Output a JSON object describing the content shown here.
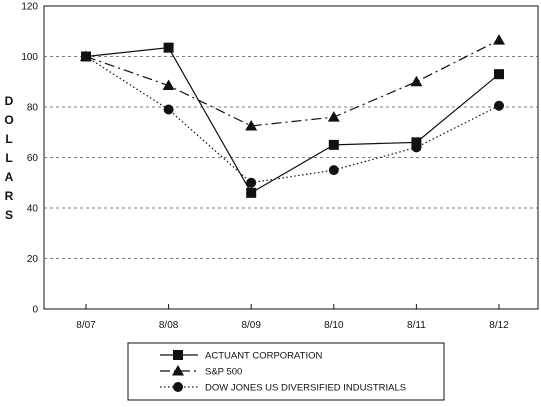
{
  "chart_data": {
    "type": "line",
    "categories": [
      "8/07",
      "8/08",
      "8/09",
      "8/10",
      "8/11",
      "8/12"
    ],
    "ylabel": "DOLLARS",
    "ylim": [
      0,
      120
    ],
    "yticks": [
      0,
      20,
      40,
      60,
      80,
      100,
      120
    ],
    "grid": "horizontal dashed",
    "legend_position": "bottom",
    "series": [
      {
        "name": "ACTUANT CORPORATION",
        "marker": "square",
        "line_style": "solid",
        "values": [
          100,
          103.5,
          46,
          65,
          66,
          93
        ]
      },
      {
        "name": "S&P 500",
        "marker": "triangle",
        "line_style": "dash-dot",
        "values": [
          100,
          88.5,
          72.5,
          76,
          90,
          106.5
        ]
      },
      {
        "name": "DOW JONES US DIVERSIFIED INDUSTRIALS",
        "marker": "circle",
        "line_style": "dotted",
        "values": [
          100,
          79,
          50,
          55,
          64,
          80.5
        ]
      }
    ]
  }
}
